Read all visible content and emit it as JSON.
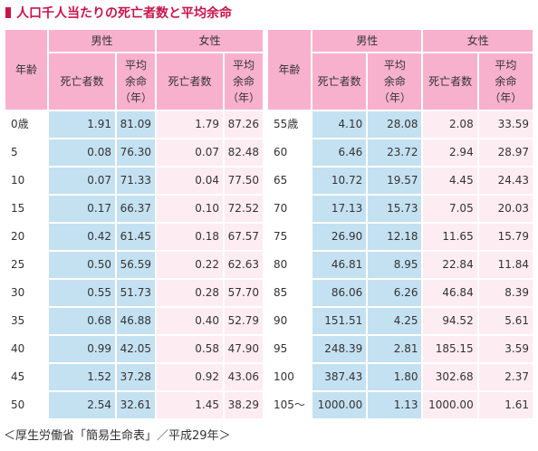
{
  "title": "人口千人当たりの死亡者数と平均余命",
  "headers": {
    "age": "年齢",
    "male": "男性",
    "female": "女性",
    "deaths": "死亡者数",
    "life_exp_line1": "平均",
    "life_exp_line2": "余命",
    "life_exp_line3": "（年）"
  },
  "colors": {
    "title": "#c8154a",
    "header_bg": "#f8b1cd",
    "male_cells": "#c4e1f2",
    "female_cells": "#fdecf2"
  },
  "left_rows": [
    {
      "age": "0歳",
      "male_deaths": "1.91",
      "male_life": "81.09",
      "female_deaths": "1.79",
      "female_life": "87.26"
    },
    {
      "age": "5",
      "male_deaths": "0.08",
      "male_life": "76.30",
      "female_deaths": "0.07",
      "female_life": "82.48"
    },
    {
      "age": "10",
      "male_deaths": "0.07",
      "male_life": "71.33",
      "female_deaths": "0.04",
      "female_life": "77.50"
    },
    {
      "age": "15",
      "male_deaths": "0.17",
      "male_life": "66.37",
      "female_deaths": "0.10",
      "female_life": "72.52"
    },
    {
      "age": "20",
      "male_deaths": "0.42",
      "male_life": "61.45",
      "female_deaths": "0.18",
      "female_life": "67.57"
    },
    {
      "age": "25",
      "male_deaths": "0.50",
      "male_life": "56.59",
      "female_deaths": "0.22",
      "female_life": "62.63"
    },
    {
      "age": "30",
      "male_deaths": "0.55",
      "male_life": "51.73",
      "female_deaths": "0.28",
      "female_life": "57.70"
    },
    {
      "age": "35",
      "male_deaths": "0.68",
      "male_life": "46.88",
      "female_deaths": "0.40",
      "female_life": "52.79"
    },
    {
      "age": "40",
      "male_deaths": "0.99",
      "male_life": "42.05",
      "female_deaths": "0.58",
      "female_life": "47.90"
    },
    {
      "age": "45",
      "male_deaths": "1.52",
      "male_life": "37.28",
      "female_deaths": "0.92",
      "female_life": "43.06"
    },
    {
      "age": "50",
      "male_deaths": "2.54",
      "male_life": "32.61",
      "female_deaths": "1.45",
      "female_life": "38.29"
    }
  ],
  "right_rows": [
    {
      "age": "55歳",
      "male_deaths": "4.10",
      "male_life": "28.08",
      "female_deaths": "2.08",
      "female_life": "33.59"
    },
    {
      "age": "60",
      "male_deaths": "6.46",
      "male_life": "23.72",
      "female_deaths": "2.94",
      "female_life": "28.97"
    },
    {
      "age": "65",
      "male_deaths": "10.72",
      "male_life": "19.57",
      "female_deaths": "4.45",
      "female_life": "24.43"
    },
    {
      "age": "70",
      "male_deaths": "17.13",
      "male_life": "15.73",
      "female_deaths": "7.05",
      "female_life": "20.03"
    },
    {
      "age": "75",
      "male_deaths": "26.90",
      "male_life": "12.18",
      "female_deaths": "11.65",
      "female_life": "15.79"
    },
    {
      "age": "80",
      "male_deaths": "46.81",
      "male_life": "8.95",
      "female_deaths": "22.84",
      "female_life": "11.84"
    },
    {
      "age": "85",
      "male_deaths": "86.06",
      "male_life": "6.26",
      "female_deaths": "46.84",
      "female_life": "8.39"
    },
    {
      "age": "90",
      "male_deaths": "151.51",
      "male_life": "4.25",
      "female_deaths": "94.52",
      "female_life": "5.61"
    },
    {
      "age": "95",
      "male_deaths": "248.39",
      "male_life": "2.81",
      "female_deaths": "185.15",
      "female_life": "3.59"
    },
    {
      "age": "100",
      "male_deaths": "387.43",
      "male_life": "1.80",
      "female_deaths": "302.68",
      "female_life": "2.37"
    },
    {
      "age": "105～",
      "male_deaths": "1000.00",
      "male_life": "1.13",
      "female_deaths": "1000.00",
      "female_life": "1.61"
    }
  ],
  "source": "＜厚生労働省「簡易生命表」／平成29年＞"
}
